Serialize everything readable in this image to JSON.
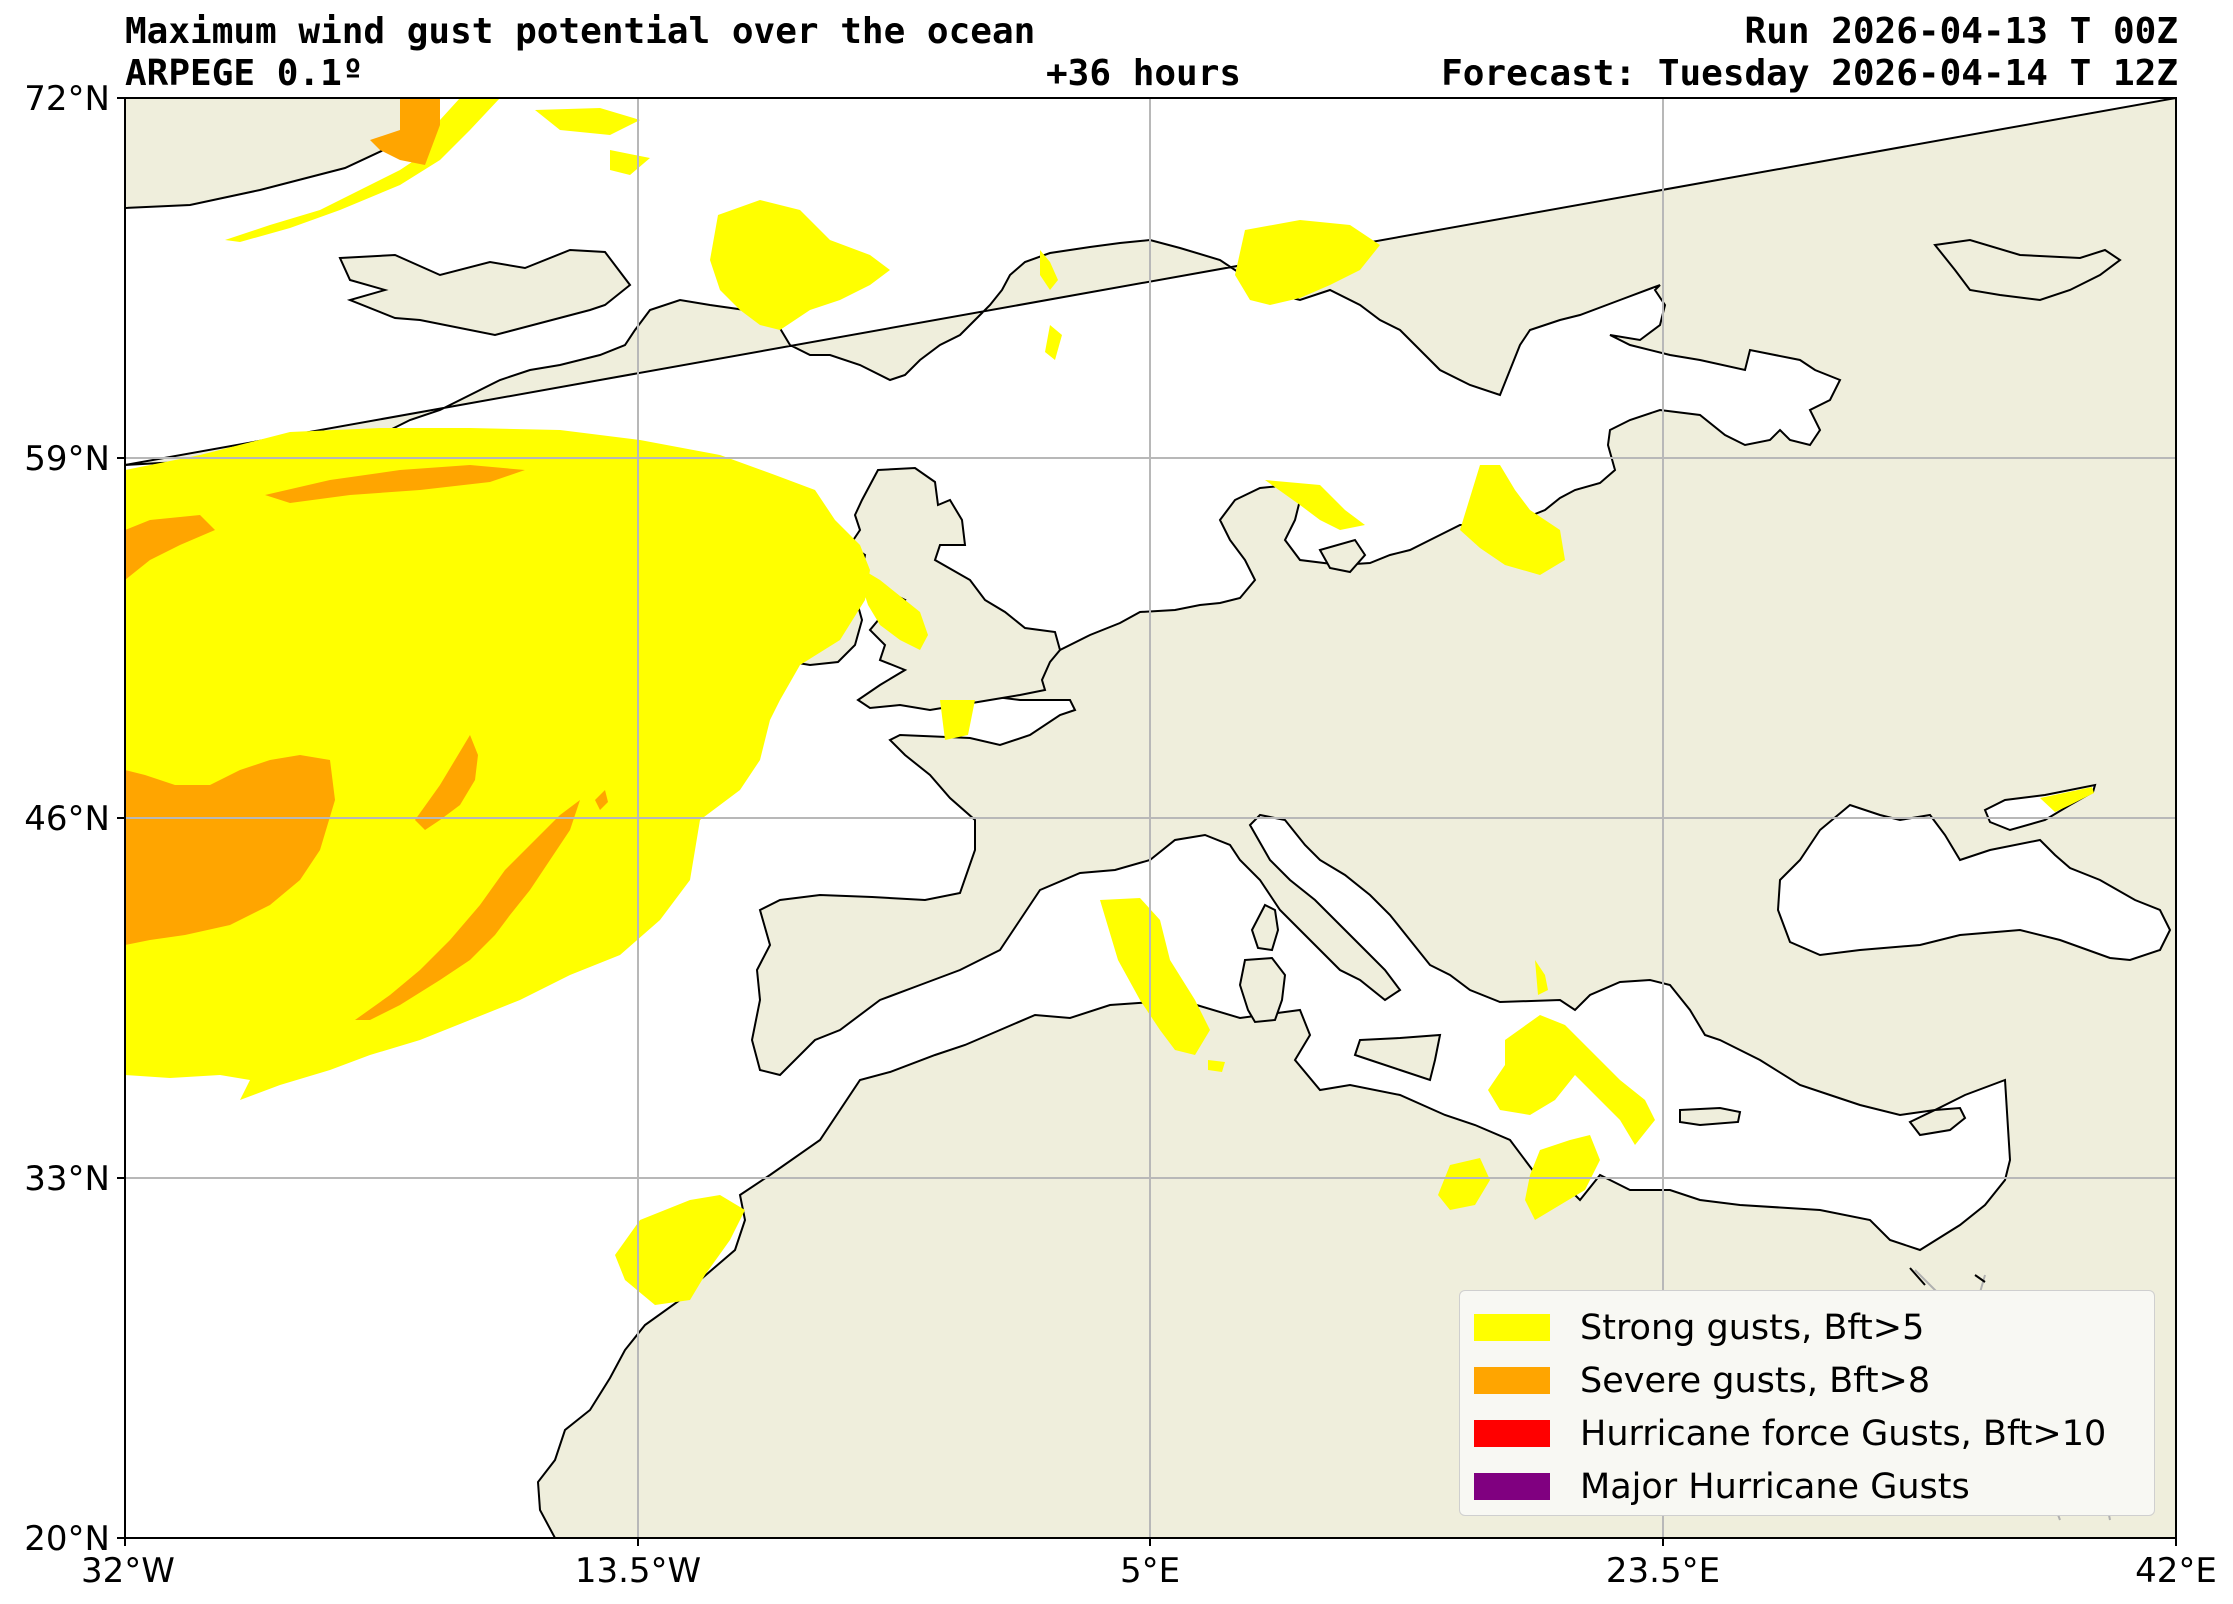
{
  "header": {
    "title": "Maximum wind gust potential over the ocean",
    "model": "ARPEGE 0.1º",
    "lead_time": "+36 hours",
    "run": "Run 2026-04-13 T 00Z",
    "forecast": "Forecast: Tuesday 2026-04-14 T 12Z"
  },
  "axes": {
    "lon_ticks": [
      "32°W",
      "13.5°W",
      "5°E",
      "23.5°E",
      "42°E"
    ],
    "lat_ticks": [
      "72°N",
      "59°N",
      "46°N",
      "33°N",
      "20°N"
    ],
    "lon_range": [
      -32,
      42
    ],
    "lat_range": [
      20,
      72
    ],
    "grid": true
  },
  "colors": {
    "land": "#efeedc",
    "ocean": "#ffffff",
    "strong": "#ffff00",
    "severe": "#ffa500",
    "hurricane": "#ff0000",
    "major": "#800080"
  },
  "legend": [
    {
      "label": "Strong gusts, Bft>5",
      "color": "#ffff00"
    },
    {
      "label": "Severe gusts, Bft>8",
      "color": "#ffa500"
    },
    {
      "label": "Hurricane force Gusts, Bft>10",
      "color": "#ff0000"
    },
    {
      "label": "Major Hurricane Gusts",
      "color": "#800080"
    }
  ]
}
